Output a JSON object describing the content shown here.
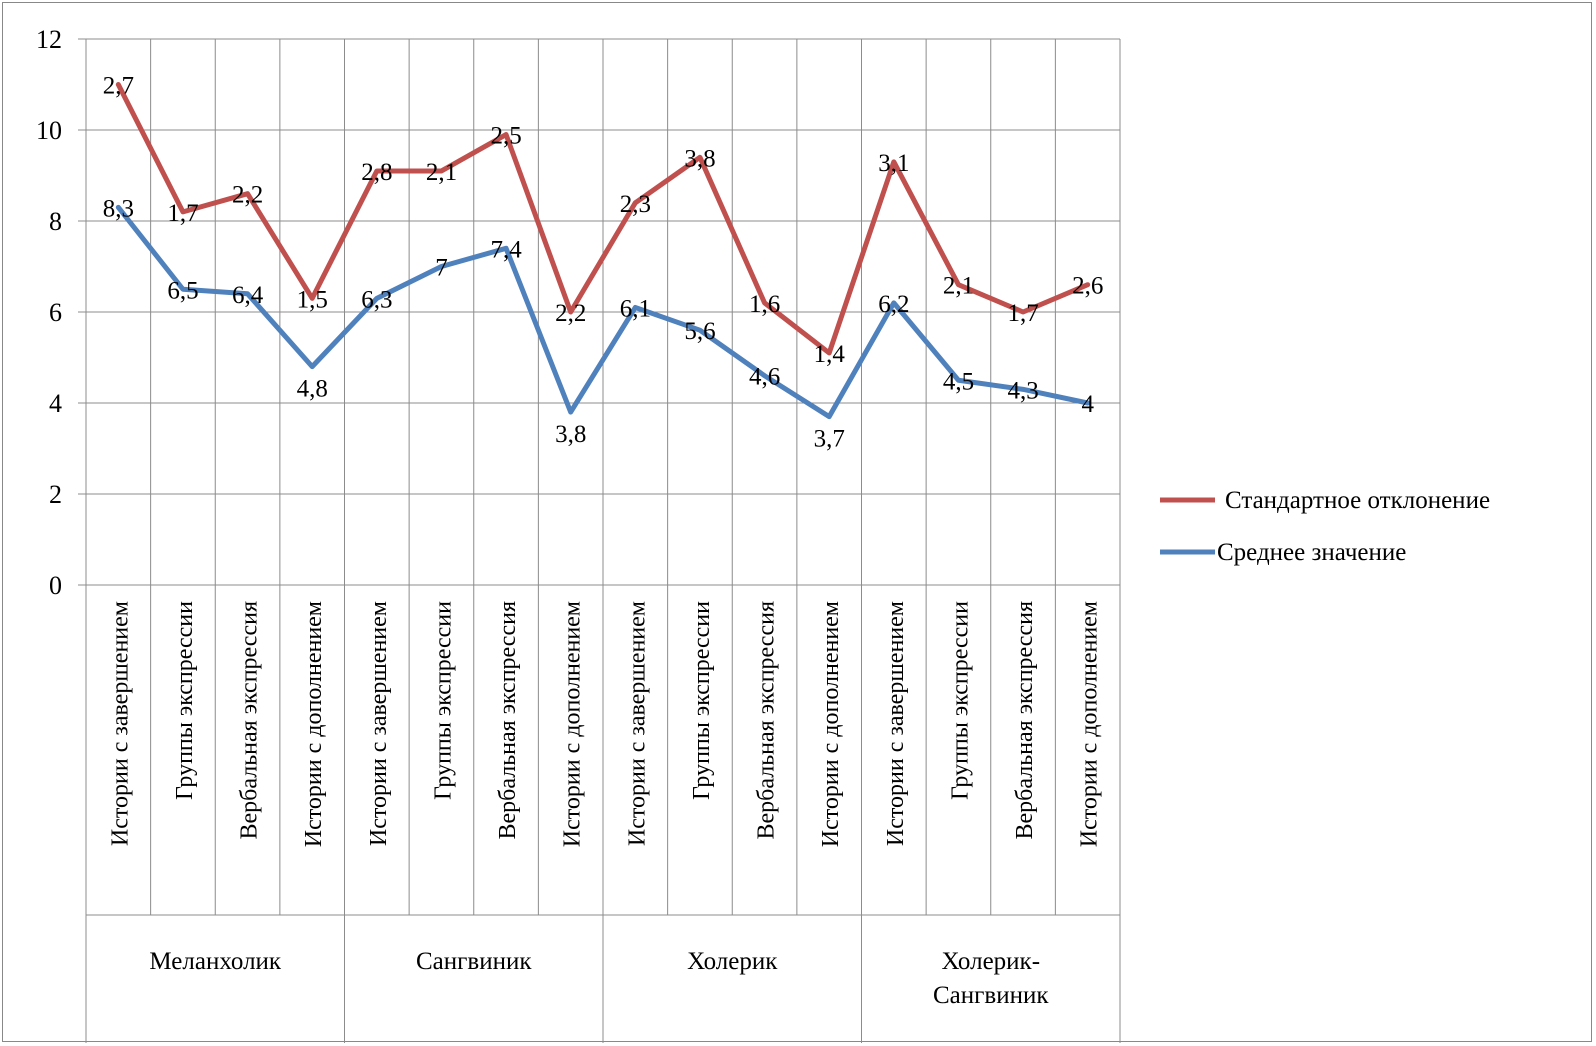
{
  "chart_data": {
    "type": "line",
    "title": "",
    "xlabel": "",
    "ylabel": "",
    "ylim": [
      0,
      12
    ],
    "yticks": [
      "0",
      "2",
      "4",
      "6",
      "8",
      "10",
      "12"
    ],
    "grid": true,
    "legend_position": "right",
    "groups": [
      {
        "label": "Меланхолик",
        "span": 4
      },
      {
        "label": "Сангвиник",
        "span": 4
      },
      {
        "label": "Холерик",
        "span": 4
      },
      {
        "label": "Холерик-Сангвиник",
        "span": 4
      }
    ],
    "categories": [
      "Истории с завершением",
      "Группы экспрессии",
      "Вербальная экспрессия",
      "Истории с дополнением",
      "Истории с завершением",
      "Группы экспрессии",
      "Вербальная экспрессия",
      "Истории с дополнением",
      "Истории с завершением",
      "Группы экспрессии",
      "Вербальная экспрессия",
      "Истории с дополнением",
      "Истории с завершением",
      "Группы экспрессии",
      "Вербальная экспрессия",
      "Истории с дополнением"
    ],
    "series": [
      {
        "name": "Стандартное отклонение",
        "color": "#c0504d",
        "stacked_on": "Среднее значение",
        "values": [
          2.7,
          1.7,
          2.2,
          1.5,
          2.8,
          2.1,
          2.5,
          2.2,
          2.3,
          3.8,
          1.6,
          1.4,
          3.1,
          2.1,
          1.7,
          2.6
        ],
        "labels": [
          "2,7",
          "1,7",
          "2,2",
          "1,5",
          "2,8",
          "2,1",
          "2,5",
          "2,2",
          "2,3",
          "3,8",
          "1,6",
          "1,4",
          "3,1",
          "2,1",
          "1,7",
          "2,6"
        ]
      },
      {
        "name": "Среднее значение",
        "color": "#4f81bd",
        "values": [
          8.3,
          6.5,
          6.4,
          4.8,
          6.3,
          7,
          7.4,
          3.8,
          6.1,
          5.6,
          4.6,
          3.7,
          6.2,
          4.5,
          4.3,
          4
        ],
        "labels": [
          "8,3",
          "6,5",
          "6,4",
          "4,8",
          "6,3",
          "7",
          "7,4",
          "3,8",
          "6,1",
          "5,6",
          "4,6",
          "3,7",
          "6,2",
          "4,5",
          "4,3",
          "4"
        ]
      }
    ]
  }
}
